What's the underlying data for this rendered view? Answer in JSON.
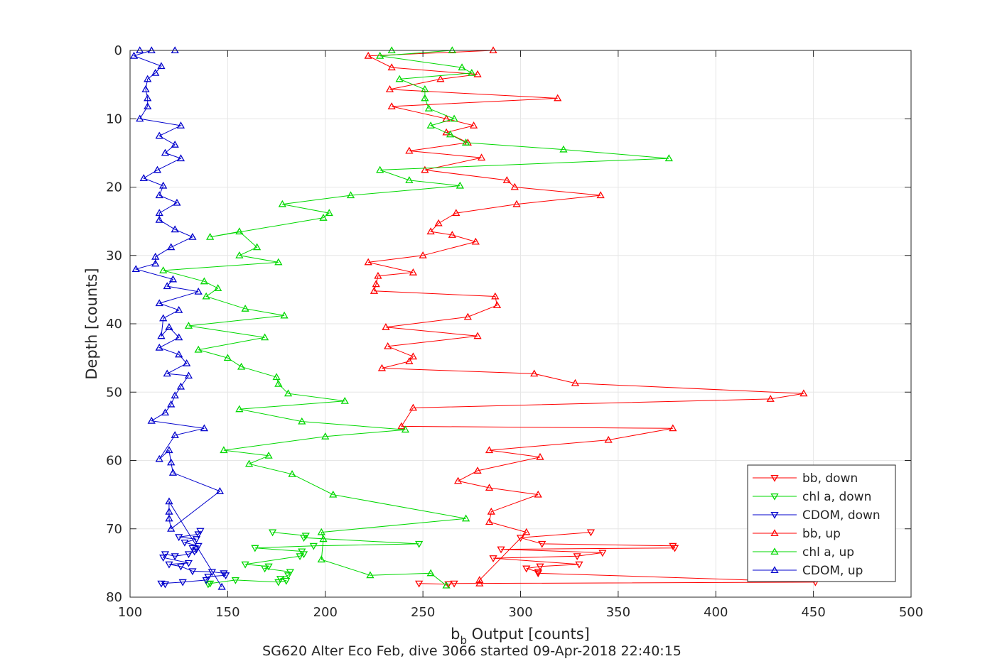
{
  "chart_data": {
    "type": "line",
    "title": "",
    "xlabel_main": "b",
    "xlabel_sub": "b",
    "xlabel_rest": " Output [counts]",
    "ylabel": "Depth [counts]",
    "footer": "SG620 Alter Eco Feb, dive 3066 started 09-Apr-2018 22:40:15",
    "xlim": [
      100,
      500
    ],
    "ylim": [
      0,
      80
    ],
    "y_reversed": true,
    "grid": true,
    "xticks": [
      "100",
      "150",
      "200",
      "250",
      "300",
      "350",
      "400",
      "450",
      "500"
    ],
    "yticks": [
      "0",
      "10",
      "20",
      "30",
      "40",
      "50",
      "60",
      "70",
      "80"
    ],
    "legend_position": "bottom-right",
    "series": [
      {
        "name": "bb, down",
        "color": "#ff0000",
        "marker": "triangle-down",
        "x": [
          336,
          300,
          311,
          378,
          379,
          290,
          342,
          329,
          286,
          330,
          310,
          303,
          309,
          309,
          451,
          266,
          263,
          248
        ],
        "y": [
          70.5,
          71.3,
          72.2,
          72.5,
          72.8,
          73,
          73.5,
          74,
          74.3,
          75.2,
          75.5,
          75.8,
          76.3,
          76.5,
          77.8,
          78,
          78.1,
          78
        ]
      },
      {
        "name": "chl a, down",
        "color": "#00d800",
        "marker": "triangle-down",
        "x": [
          173,
          190,
          189,
          248,
          194,
          164,
          188,
          189,
          187,
          159,
          171,
          169,
          182,
          181,
          177,
          180,
          176,
          154,
          141,
          140
        ],
        "y": [
          70.5,
          71,
          71.3,
          72.2,
          72.5,
          72.8,
          73.3,
          73.7,
          74,
          75.2,
          75.5,
          75.8,
          76.3,
          76.8,
          77.3,
          77.6,
          77.8,
          77.5,
          78,
          78.1
        ]
      },
      {
        "name": "CDOM, down",
        "color": "#0000cc",
        "marker": "triangle-down",
        "x": [
          136,
          135,
          125,
          134,
          128,
          135,
          132,
          134,
          133,
          130,
          123,
          118,
          117,
          130,
          120,
          126,
          132,
          142,
          148,
          149,
          140,
          139,
          127,
          116,
          118
        ],
        "y": [
          70.3,
          70.8,
          71.2,
          71.5,
          72,
          72.5,
          72.8,
          73,
          73.3,
          73.7,
          74,
          73.7,
          74.2,
          75,
          75.2,
          75.5,
          76.2,
          76.3,
          76.5,
          76.8,
          77,
          77.5,
          77.8,
          78,
          78.1
        ]
      },
      {
        "name": "bb, up",
        "color": "#ff0000",
        "marker": "triangle-up",
        "x": [
          279,
          279,
          303,
          284,
          285,
          309,
          284,
          268,
          278,
          310,
          284,
          345,
          378,
          239,
          245,
          428,
          445,
          328,
          307,
          229,
          243,
          245,
          232,
          278,
          231,
          273,
          288,
          287,
          225,
          226,
          227,
          245,
          222,
          250,
          277,
          265,
          254,
          258,
          267,
          298,
          341,
          297,
          293,
          251,
          280,
          243,
          273,
          262,
          276,
          262,
          234,
          319,
          233,
          259,
          278,
          234,
          222,
          286
        ],
        "y": [
          78,
          77.5,
          70.5,
          69,
          67.5,
          65,
          64,
          63,
          61.5,
          59.5,
          58.5,
          57,
          55.3,
          55,
          52.3,
          51,
          50.2,
          48.7,
          47.3,
          46.5,
          45.5,
          44.8,
          43.3,
          41.8,
          40.5,
          39,
          37.3,
          36,
          35.2,
          34.2,
          33,
          32.5,
          31,
          30,
          28,
          27,
          26.5,
          25.3,
          23.8,
          22.5,
          21.2,
          20,
          19,
          17.5,
          15.7,
          14.7,
          13.5,
          12,
          11,
          10,
          8.2,
          7,
          5.7,
          4.2,
          3.5,
          2.5,
          0.8,
          0
        ]
      },
      {
        "name": "chl a, up",
        "color": "#00d800",
        "marker": "triangle-up",
        "x": [
          262,
          254,
          223,
          198,
          199,
          198,
          272,
          204,
          183,
          161,
          171,
          148,
          200,
          241,
          188,
          156,
          210,
          181,
          176,
          175,
          157,
          150,
          135,
          169,
          130,
          179,
          159,
          139,
          145,
          138,
          117,
          176,
          156,
          165,
          156,
          141,
          199,
          202,
          178,
          213,
          269,
          243,
          228,
          376,
          322,
          272,
          264,
          254,
          266,
          253,
          251,
          251,
          238,
          275,
          270,
          228,
          265,
          234
        ],
        "y": [
          78.3,
          76.5,
          76.8,
          74.5,
          71.5,
          70.5,
          68.5,
          65,
          62,
          60.5,
          59.3,
          58.5,
          56.5,
          55.5,
          54.3,
          52.5,
          51.3,
          50.2,
          48.8,
          47.8,
          46.3,
          45,
          43.8,
          42,
          40.3,
          38.8,
          37.8,
          36,
          34.8,
          33.8,
          32.2,
          31,
          30,
          28.8,
          26.5,
          27.3,
          24.5,
          23.8,
          22.5,
          21.2,
          19.8,
          19,
          17.5,
          15.8,
          14.5,
          13.5,
          12.3,
          11,
          10,
          8.5,
          7,
          5.7,
          4.2,
          3.3,
          2.5,
          0.8,
          0,
          0
        ]
      },
      {
        "name": "CDOM, up",
        "color": "#0000cc",
        "marker": "triangle-up",
        "x": [
          147,
          120,
          120,
          120,
          121,
          146,
          122,
          121,
          120,
          115,
          123,
          138,
          111,
          118,
          121,
          123,
          126,
          130,
          119,
          129,
          125,
          115,
          125,
          120,
          116,
          117,
          125,
          115,
          135,
          119,
          122,
          103,
          113,
          113,
          121,
          132,
          123,
          115,
          115,
          124,
          115,
          117,
          107,
          114,
          126,
          118,
          123,
          115,
          126,
          105,
          109,
          109,
          108,
          109,
          113,
          116,
          102,
          111,
          105,
          123
        ],
        "y": [
          78.5,
          66,
          67.5,
          68.5,
          70,
          64.5,
          61.8,
          60.3,
          58.5,
          59.8,
          56.3,
          55.3,
          54.2,
          53,
          51.8,
          50.5,
          49.2,
          47.6,
          47.3,
          45.8,
          44.5,
          43.5,
          42,
          40.5,
          41.8,
          39.2,
          38,
          37,
          35.3,
          34.5,
          33.5,
          32,
          31.2,
          30.2,
          28.8,
          27.3,
          26.2,
          24.8,
          23.8,
          22.3,
          21.2,
          19.8,
          18.7,
          17.5,
          15.8,
          15,
          13.8,
          12.5,
          11,
          10,
          8.2,
          7,
          5.7,
          4.2,
          3.3,
          2.3,
          0.8,
          0,
          0,
          0
        ]
      }
    ]
  }
}
